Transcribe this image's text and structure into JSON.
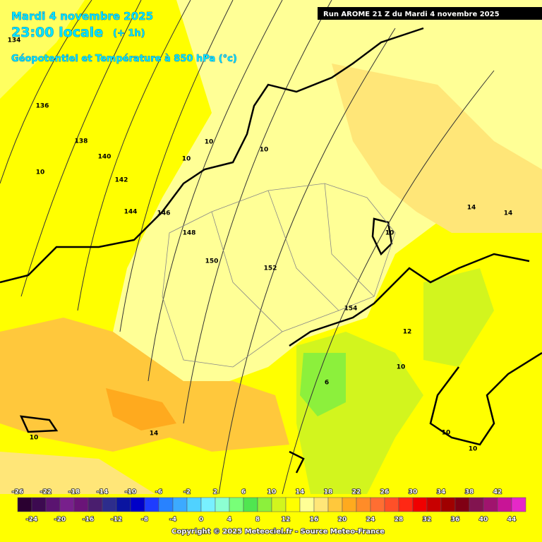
{
  "header": {
    "date": "Mardi 4 novembre 2025",
    "time": "23:00 locale",
    "lead": "(+ 1h)",
    "field": "Géopotentiel et Température à 850 hPa (°c)",
    "run": "Run AROME 21 Z du Mardi 4 novembre 2025"
  },
  "isohypses": [
    134,
    136,
    138,
    140,
    142,
    144,
    146,
    148,
    150,
    152,
    154
  ],
  "isotherms": [
    10,
    10,
    10,
    10,
    10,
    14,
    14,
    12,
    10,
    6,
    10,
    14,
    10,
    10
  ],
  "scale": {
    "levels": [
      -26,
      -24,
      -22,
      -20,
      -18,
      -16,
      -14,
      -12,
      -10,
      -8,
      -6,
      -4,
      -2,
      0,
      2,
      4,
      6,
      8,
      10,
      12,
      14,
      16,
      18,
      20,
      22,
      24,
      26,
      28,
      30,
      32,
      34,
      36,
      38,
      40,
      42,
      44
    ],
    "colors": [
      "#2a0030",
      "#3c0a50",
      "#5a1470",
      "#78208c",
      "#6a1478",
      "#4a1e6e",
      "#2d2d8c",
      "#0a14a0",
      "#0000c8",
      "#1e3cff",
      "#2882ff",
      "#3caaff",
      "#50d2ff",
      "#78f0ff",
      "#8cffd2",
      "#78ff78",
      "#50e650",
      "#8cf03c",
      "#d2f51e",
      "#ffff00",
      "#ffff96",
      "#ffe678",
      "#ffc83c",
      "#ffaa1e",
      "#ff8c28",
      "#ff6e32",
      "#ff5028",
      "#ff2814",
      "#f00000",
      "#c80000",
      "#a00000",
      "#800014",
      "#821450",
      "#a0146e",
      "#c81496",
      "#e628c8"
    ]
  },
  "copyright": "Copyright © 2025 Meteociel.fr - Source Meteo-France"
}
